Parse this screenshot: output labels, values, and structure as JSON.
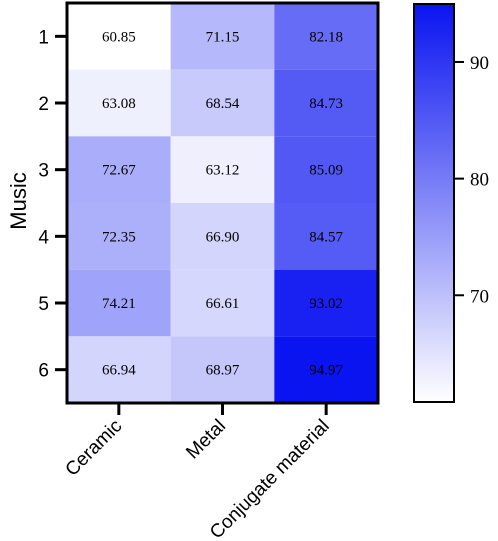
{
  "chart_data": {
    "type": "heatmap",
    "ylabel": "Music",
    "rows": [
      "1",
      "2",
      "3",
      "4",
      "5",
      "6"
    ],
    "columns": [
      "Ceramic",
      "Metal",
      "Conjugate material"
    ],
    "values": [
      [
        60.85,
        71.15,
        82.18
      ],
      [
        63.08,
        68.54,
        84.73
      ],
      [
        72.67,
        63.12,
        85.09
      ],
      [
        72.35,
        66.9,
        84.57
      ],
      [
        74.21,
        66.61,
        93.02
      ],
      [
        66.94,
        68.97,
        94.97
      ]
    ],
    "labels": [
      [
        "60.85",
        "71.15",
        "82.18"
      ],
      [
        "63.08",
        "68.54",
        "84.73"
      ],
      [
        "72.67",
        "63.12",
        "85.09"
      ],
      [
        "72.35",
        "66.90",
        "84.57"
      ],
      [
        "74.21",
        "66.61",
        "93.02"
      ],
      [
        "66.94",
        "68.97",
        "94.97"
      ]
    ],
    "colorbar": {
      "range": [
        60.85,
        94.97
      ],
      "ticks": [
        70,
        80,
        90
      ],
      "tick_labels": [
        "70",
        "80",
        "90"
      ],
      "min_color": "#ffffff",
      "max_color": "#0a14f0"
    },
    "grid": false,
    "legend": "colorbar-right"
  }
}
